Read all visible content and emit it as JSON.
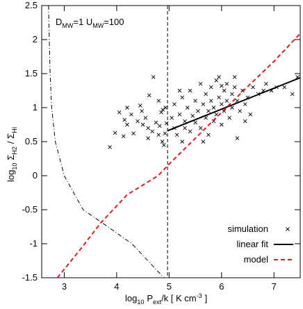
{
  "chart_data": {
    "type": "scatter",
    "xlabel": [
      "log",
      "10",
      "P",
      "ext",
      "/k [ K cm",
      "-3",
      "]"
    ],
    "ylabel": [
      "log",
      "10",
      "Σ",
      "H2",
      "/ Σ",
      "HI"
    ],
    "annotation": [
      "D",
      "MW",
      "=1 U",
      "MW",
      "=100"
    ],
    "xlim": [
      2.57,
      7.5
    ],
    "ylim": [
      -1.5,
      2.5
    ],
    "xticks": [
      3,
      4,
      5,
      6,
      7
    ],
    "yticks": [
      -1.5,
      -1,
      -0.5,
      0,
      0.5,
      1,
      1.5,
      2,
      2.5
    ],
    "legend": "lower right",
    "vline": 4.97,
    "curve": {
      "color": "#000000",
      "x": [
        2.7,
        2.73,
        2.76,
        2.83,
        3.0,
        3.36,
        3.7,
        4.29,
        4.9
      ],
      "values": [
        2.5,
        1.5,
        1.0,
        0.5,
        0,
        -0.5,
        -0.68,
        -1.0,
        -1.5
      ]
    },
    "series": [
      {
        "name": "simulation",
        "type": "scatter",
        "color": "#000000",
        "x": [
          3.87,
          3.97,
          4.05,
          4.15,
          4.13,
          4.2,
          4.28,
          4.32,
          4.4,
          4.45,
          4.48,
          4.55,
          4.6,
          4.62,
          4.68,
          4.7,
          4.75,
          4.8,
          4.82,
          4.87,
          4.9,
          4.92,
          4.95,
          4.88,
          4.8,
          4.5,
          4.2,
          4.6,
          4.85,
          4.93,
          5.05,
          5.1,
          5.1,
          5.15,
          5.2,
          5.25,
          5.25,
          5.3,
          5.3,
          5.35,
          5.4,
          5.4,
          5.45,
          5.5,
          5.5,
          5.55,
          5.6,
          5.6,
          5.65,
          5.7,
          5.7,
          5.75,
          5.75,
          5.8,
          5.8,
          5.85,
          5.85,
          5.9,
          5.9,
          5.95,
          6.0,
          6.0,
          6.05,
          6.05,
          6.1,
          6.1,
          6.15,
          6.2,
          6.2,
          6.25,
          6.3,
          6.3,
          6.35,
          6.4,
          6.45,
          6.5,
          6.55,
          6.6,
          6.7,
          6.8,
          6.85,
          6.95,
          7.05,
          7.2,
          7.35,
          7.45,
          6.0,
          5.95,
          6.25,
          5.2,
          5.65,
          6.45
        ],
        "values": [
          0.42,
          0.63,
          0.93,
          0.82,
          0.58,
          0.75,
          0.9,
          0.62,
          0.8,
          1.03,
          0.95,
          0.85,
          0.7,
          1.18,
          0.65,
          1.45,
          0.78,
          0.6,
          0.73,
          0.5,
          0.45,
          0.62,
          0.77,
          0.97,
          1.1,
          0.75,
          1.0,
          0.55,
          0.93,
          1.0,
          0.85,
          0.7,
          1.05,
          0.6,
          0.9,
          0.5,
          1.15,
          0.8,
          0.7,
          1.0,
          0.65,
          1.25,
          0.88,
          0.78,
          1.1,
          0.95,
          1.35,
          0.7,
          1.05,
          0.85,
          1.2,
          0.6,
          0.95,
          1.3,
          1.1,
          0.8,
          1.0,
          1.4,
          0.9,
          1.15,
          0.75,
          1.05,
          1.25,
          0.95,
          1.35,
          1.1,
          0.85,
          1.2,
          1.0,
          1.3,
          0.55,
          1.1,
          0.95,
          1.25,
          1.05,
          1.15,
          0.9,
          1.3,
          1.2,
          1.25,
          1.35,
          1.25,
          1.3,
          1.3,
          1.2,
          1.45,
          1.32,
          1.45,
          1.45,
          1.25,
          0.5,
          0.8
        ]
      },
      {
        "name": "linear fit",
        "type": "line",
        "color": "#000000",
        "x": [
          4.97,
          7.5
        ],
        "values": [
          0.66,
          1.44
        ]
      },
      {
        "name": "model",
        "type": "dashed",
        "color": "#e41a1c",
        "x": [
          2.87,
          3.3,
          3.7,
          4.2,
          4.79,
          5.0,
          5.5,
          6.0,
          6.5,
          7.0,
          7.5
        ],
        "values": [
          -1.5,
          -1.09,
          -0.69,
          -0.28,
          0,
          0.17,
          0.55,
          0.93,
          1.31,
          1.68,
          2.09
        ]
      }
    ]
  }
}
